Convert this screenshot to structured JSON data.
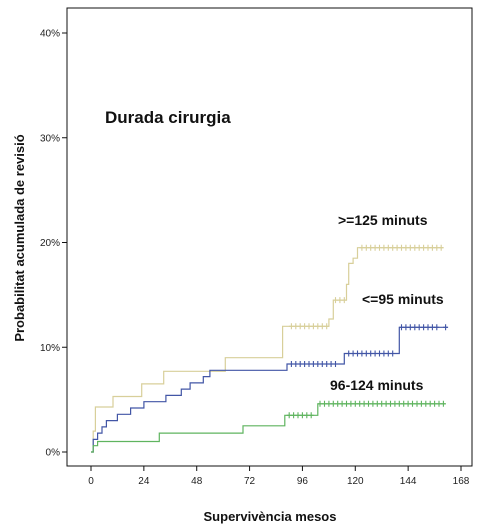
{
  "chart_data": {
    "type": "line",
    "subtype": "step",
    "title": "",
    "xlabel": "Supervivència mesos",
    "ylabel": "Probabilitat acumulada de revisió",
    "legend_title": "Durada cirurgia",
    "xlim": [
      0,
      168
    ],
    "ylim": [
      0,
      40
    ],
    "x_ticks": [
      0,
      24,
      48,
      72,
      96,
      120,
      144,
      168
    ],
    "y_ticks": [
      0,
      10,
      20,
      30,
      40
    ],
    "y_tick_labels": [
      "0%",
      "10%",
      "20%",
      "30%",
      "40%"
    ],
    "grid": false,
    "series": [
      {
        "name": ">=125 minuts",
        "color": "#d8cf9a",
        "points": [
          [
            0,
            0
          ],
          [
            1,
            2
          ],
          [
            2,
            4.3
          ],
          [
            9,
            4.3
          ],
          [
            10,
            5.3
          ],
          [
            22,
            5.3
          ],
          [
            23,
            6.5
          ],
          [
            32,
            6.5
          ],
          [
            33,
            7.7
          ],
          [
            60,
            7.7
          ],
          [
            61,
            9
          ],
          [
            86,
            9
          ],
          [
            87,
            12
          ],
          [
            100,
            12
          ],
          [
            108,
            12.7
          ],
          [
            110,
            14.5
          ],
          [
            116,
            16
          ],
          [
            117,
            18
          ],
          [
            119,
            18.5
          ],
          [
            121,
            19.5
          ],
          [
            160,
            19.5
          ]
        ],
        "censored": [
          91,
          93,
          95,
          97,
          99,
          101,
          103,
          105,
          107,
          111,
          113,
          115,
          123,
          125,
          127,
          129,
          131,
          133,
          135,
          137,
          139,
          141,
          143,
          145,
          147,
          149,
          151,
          153,
          155,
          157,
          159
        ]
      },
      {
        "name": "<=95 minuts",
        "color": "#4256a6",
        "points": [
          [
            0,
            0
          ],
          [
            1,
            1.2
          ],
          [
            3,
            1.8
          ],
          [
            5,
            2.4
          ],
          [
            7,
            3
          ],
          [
            12,
            3.6
          ],
          [
            18,
            4.2
          ],
          [
            24,
            4.8
          ],
          [
            34,
            5.4
          ],
          [
            41,
            6
          ],
          [
            45,
            6.6
          ],
          [
            51,
            7.2
          ],
          [
            54,
            7.8
          ],
          [
            88,
            7.8
          ],
          [
            89,
            8.4
          ],
          [
            114,
            8.4
          ],
          [
            115,
            9.4
          ],
          [
            139,
            9.4
          ],
          [
            140,
            11.9
          ],
          [
            162,
            11.9
          ]
        ],
        "censored": [
          91,
          93,
          95,
          97,
          99,
          101,
          103,
          105,
          107,
          109,
          111,
          117,
          119,
          121,
          123,
          125,
          127,
          129,
          131,
          133,
          135,
          137,
          141,
          143,
          145,
          147,
          149,
          151,
          153,
          155,
          157,
          161
        ]
      },
      {
        "name": "96-124 minuts",
        "color": "#5fb45f",
        "points": [
          [
            0,
            0
          ],
          [
            1,
            0.6
          ],
          [
            3,
            1
          ],
          [
            30,
            1
          ],
          [
            31,
            1.8
          ],
          [
            68,
            1.8
          ],
          [
            69,
            2.5
          ],
          [
            87,
            2.5
          ],
          [
            88,
            3.5
          ],
          [
            102,
            3.5
          ],
          [
            103,
            4.6
          ],
          [
            161,
            4.6
          ]
        ],
        "censored": [
          90,
          92,
          94,
          96,
          98,
          100,
          104,
          106,
          108,
          110,
          112,
          114,
          116,
          118,
          120,
          122,
          124,
          126,
          128,
          130,
          132,
          134,
          136,
          138,
          140,
          142,
          144,
          146,
          148,
          150,
          152,
          154,
          156,
          158,
          160
        ]
      }
    ],
    "annotations": [
      ">=125 minuts",
      "<=95 minuts",
      "96-124 minuts"
    ]
  }
}
